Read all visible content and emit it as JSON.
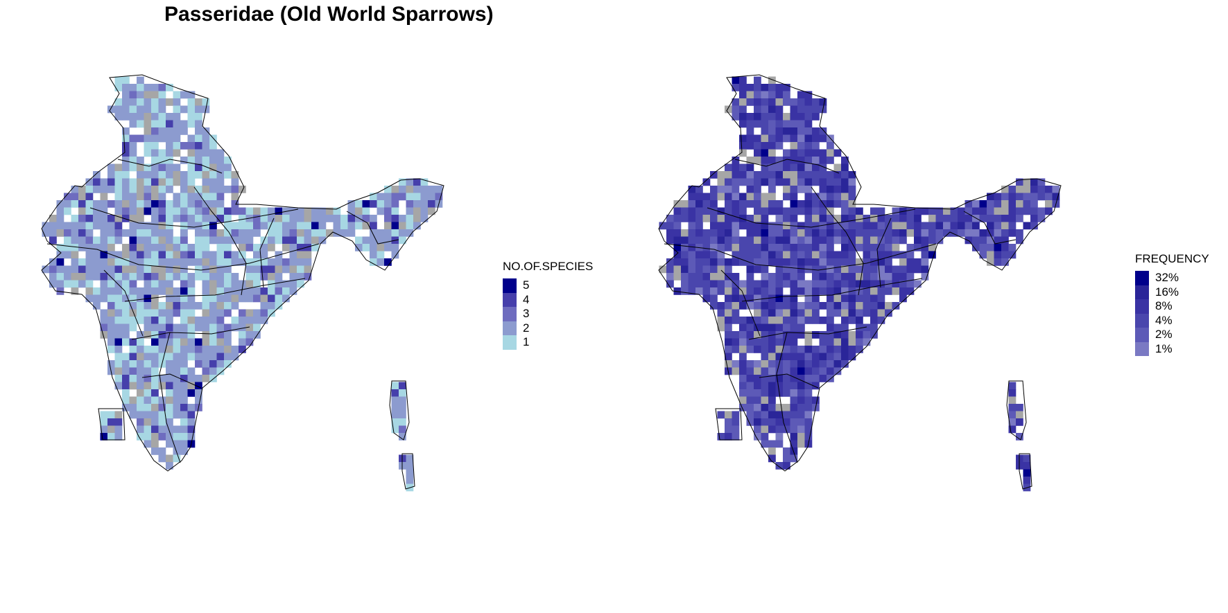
{
  "title": "Passeridae (Old World Sparrows)",
  "left_legend": {
    "title": "NO.OF.SPECIES",
    "items": [
      {
        "label": "5",
        "color": "#00008b"
      },
      {
        "label": "4",
        "color": "#463fab"
      },
      {
        "label": "3",
        "color": "#6e6cbf"
      },
      {
        "label": "2",
        "color": "#8c9bcf"
      },
      {
        "label": "1",
        "color": "#a7d7e3"
      }
    ]
  },
  "right_legend": {
    "title": "FREQUENCY",
    "items": [
      {
        "label": "32%",
        "color": "#00008b"
      },
      {
        "label": "16%",
        "color": "#2a2599"
      },
      {
        "label": "8%",
        "color": "#3a33a4"
      },
      {
        "label": "4%",
        "color": "#4a46ad"
      },
      {
        "label": "2%",
        "color": "#5d5ab7"
      },
      {
        "label": "1%",
        "color": "#7a79c3"
      }
    ]
  },
  "colors": {
    "no_data": "#a6a6a6",
    "outline": "#000000"
  }
}
